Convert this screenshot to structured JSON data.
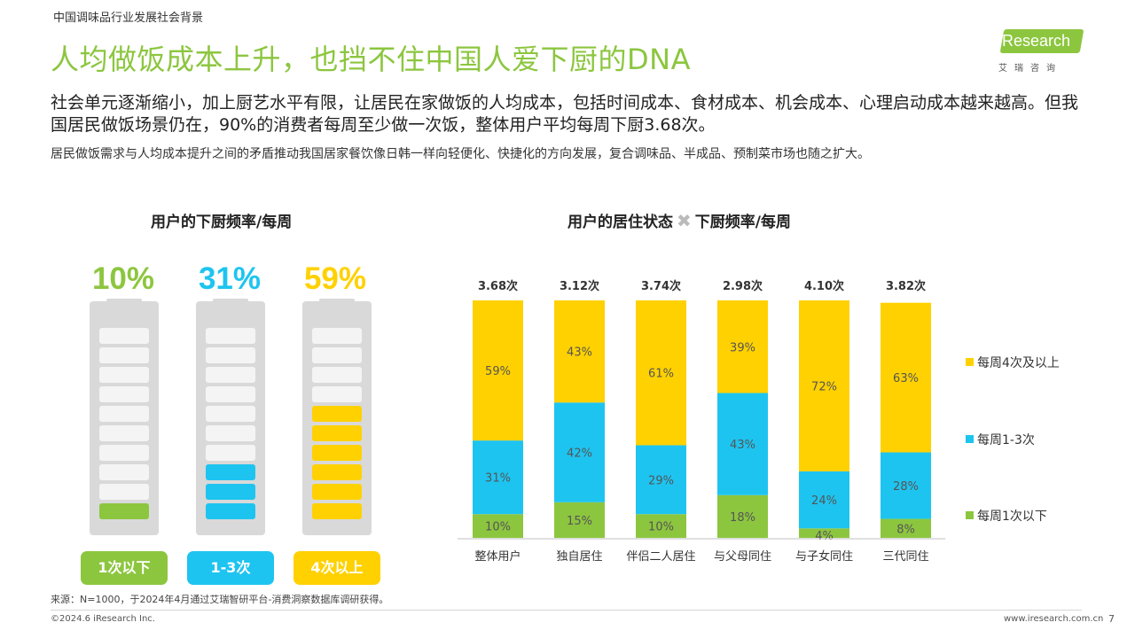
{
  "header": {
    "section": "中国调味品行业发展社会背景",
    "title": "人均做饭成本上升，也挡不住中国人爱下厨的DNA",
    "logo_text": "iResearch",
    "logo_sub": "艾瑞咨询"
  },
  "body": {
    "paragraph": "社会单元逐渐缩小，加上厨艺水平有限，让居民在家做饭的人均成本，包括时间成本、食材成本、机会成本、心理启动成本越来越高。但我国居民做饭场景仍在，90%的消费者每周至少做一次饭，整体用户平均每周下厨3.68次。",
    "note": "居民做饭需求与人均成本提升之间的矛盾推动我国居家餐饮像日韩一样向轻便化、快捷化的方向发展，复合调味品、半成品、预制菜市场也随之扩大。"
  },
  "left_panel": {
    "title": "用户的下厨频率/每周",
    "items": [
      {
        "percent": "10%",
        "label": "1次以下",
        "value": 10,
        "color": "#8cc63f"
      },
      {
        "percent": "31%",
        "label": "1-3次",
        "value": 31,
        "color": "#1ec4f0"
      },
      {
        "percent": "59%",
        "label": "4次以上",
        "value": 59,
        "color": "#ffd100"
      }
    ]
  },
  "right_panel": {
    "title_left": "用户的居住状态",
    "title_cross": "✖",
    "title_right": "下厨频率/每周"
  },
  "chart_data": {
    "type": "bar",
    "stacked": true,
    "categories": [
      "整体用户",
      "独自居住",
      "伴侣二人居住",
      "与父母同住",
      "与子女同住",
      "三代同住"
    ],
    "totals": [
      "3.68次",
      "3.12次",
      "3.74次",
      "2.98次",
      "4.10次",
      "3.82次"
    ],
    "series": [
      {
        "name": "每周1次以下",
        "color": "#8cc63f",
        "values": [
          10,
          15,
          10,
          18,
          4,
          8
        ]
      },
      {
        "name": "每周1-3次",
        "color": "#1ec4f0",
        "values": [
          31,
          42,
          29,
          43,
          24,
          28
        ]
      },
      {
        "name": "每周4次及以上",
        "color": "#ffd100",
        "values": [
          59,
          43,
          61,
          39,
          72,
          63
        ]
      }
    ],
    "ylim": [
      0,
      100
    ],
    "legend_position": "right"
  },
  "footer": {
    "source": "来源：N=1000，于2024年4月通过艾瑞智研平台-消费洞察数据库调研获得。",
    "copyright": "©2024.6 iResearch Inc.",
    "site": "www.iresearch.com.cn",
    "page": "7"
  }
}
